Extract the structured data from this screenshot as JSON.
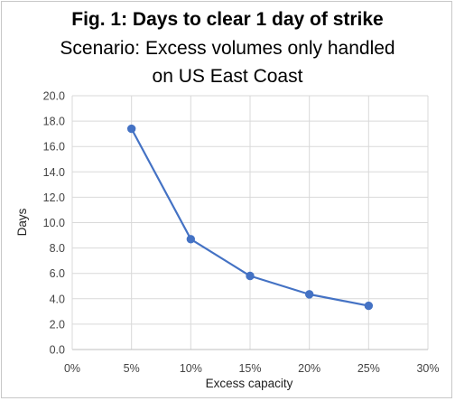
{
  "chart_data": {
    "type": "line",
    "title": "Fig. 1: Days to clear 1 day of strike",
    "subtitle_line1": "Scenario: Excess volumes only handled",
    "subtitle_line2": "on US East Coast",
    "xlabel": "Excess capacity",
    "ylabel": "Days",
    "x_ticks": [
      "0%",
      "5%",
      "10%",
      "15%",
      "20%",
      "25%",
      "30%"
    ],
    "y_ticks": [
      "0.0",
      "2.0",
      "4.0",
      "6.0",
      "8.0",
      "10.0",
      "12.0",
      "14.0",
      "16.0",
      "18.0",
      "20.0"
    ],
    "xlim": [
      0,
      30
    ],
    "ylim": [
      0,
      20
    ],
    "grid": true,
    "series": [
      {
        "x": [
          5,
          10,
          15,
          20,
          25
        ],
        "values": [
          17.4,
          8.7,
          5.8,
          4.35,
          3.45
        ],
        "color": "#4472c4"
      }
    ]
  }
}
